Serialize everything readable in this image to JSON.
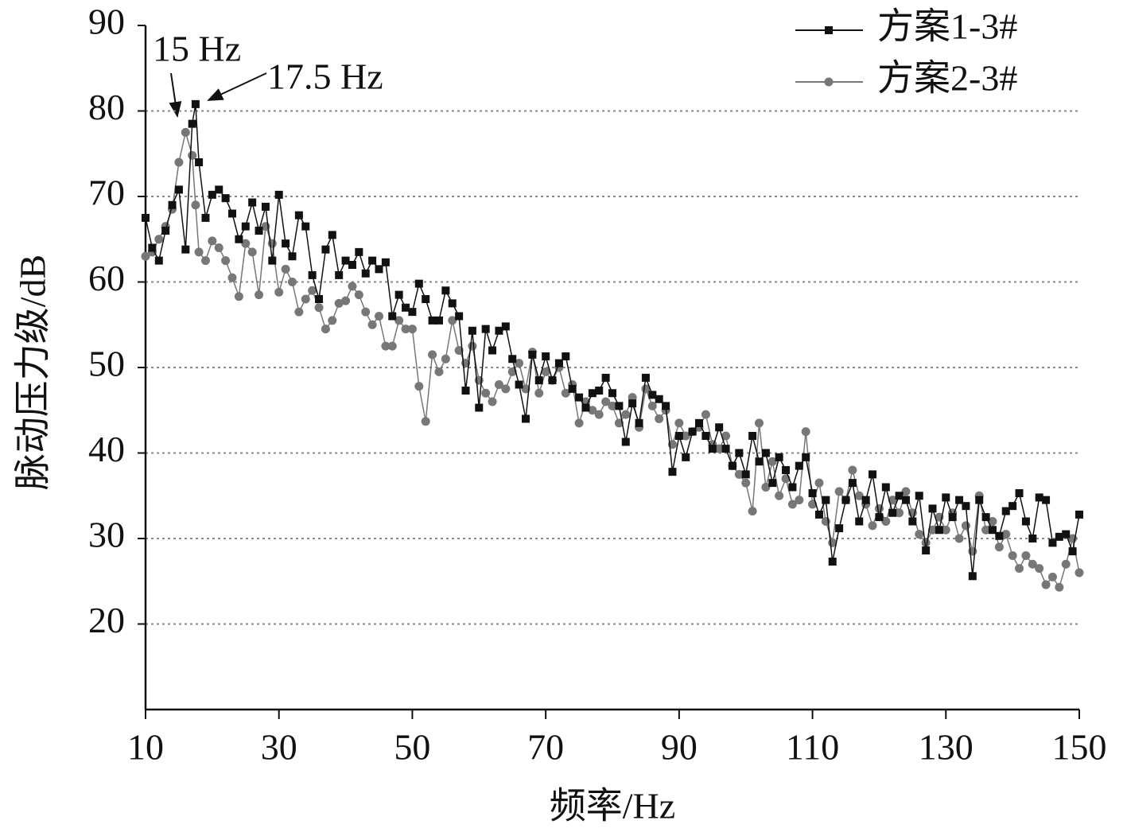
{
  "chart_data": {
    "type": "line",
    "xlabel": "频率/Hz",
    "ylabel": "脉动压力级/dB",
    "annotations": [
      "15 Hz",
      "17.5 Hz"
    ],
    "x": [
      10,
      11,
      12,
      13,
      14,
      15,
      16,
      17,
      17.5,
      18,
      19,
      20,
      21,
      22,
      23,
      24,
      25,
      26,
      27,
      28,
      29,
      30,
      31,
      32,
      33,
      34,
      35,
      36,
      37,
      38,
      39,
      40,
      41,
      42,
      43,
      44,
      45,
      46,
      47,
      48,
      49,
      50,
      51,
      52,
      53,
      54,
      55,
      56,
      57,
      58,
      59,
      60,
      61,
      62,
      63,
      64,
      65,
      66,
      67,
      68,
      69,
      70,
      71,
      72,
      73,
      74,
      75,
      76,
      77,
      78,
      79,
      80,
      81,
      82,
      83,
      84,
      85,
      86,
      87,
      88,
      89,
      90,
      91,
      92,
      93,
      94,
      95,
      96,
      97,
      98,
      99,
      100,
      101,
      102,
      103,
      104,
      105,
      106,
      107,
      108,
      109,
      110,
      111,
      112,
      113,
      114,
      115,
      116,
      117,
      118,
      119,
      120,
      121,
      122,
      123,
      124,
      125,
      126,
      127,
      128,
      129,
      130,
      131,
      132,
      133,
      134,
      135,
      136,
      137,
      138,
      139,
      140,
      141,
      142,
      143,
      144,
      145,
      146,
      147,
      148,
      149,
      150
    ],
    "series": [
      {
        "name": "方案1-3#",
        "color": "#111111",
        "marker": "square",
        "values": [
          67.5,
          64,
          62.5,
          66,
          69,
          70.8,
          63.8,
          78.5,
          80.8,
          74,
          67.5,
          70.2,
          70.8,
          69.8,
          68,
          65,
          66.5,
          69.3,
          66,
          68.8,
          62.5,
          70.2,
          64.5,
          63,
          67.8,
          66.5,
          60.8,
          58,
          63.8,
          65.5,
          60.8,
          62.5,
          62,
          63.5,
          61,
          62.5,
          61.5,
          62.3,
          56,
          58.5,
          57,
          56.5,
          59.8,
          58,
          55.5,
          55.5,
          59,
          57.5,
          56,
          47.3,
          54.3,
          45.3,
          54.5,
          52,
          54.3,
          54.8,
          51,
          48,
          44,
          51.5,
          48.5,
          51.3,
          48.5,
          50.5,
          51.3,
          47.5,
          46.5,
          45.3,
          47,
          47.3,
          48.8,
          47,
          45.5,
          41.3,
          45.8,
          43.5,
          48.8,
          46.8,
          46.3,
          45.5,
          37.8,
          42,
          39.5,
          42.5,
          43.5,
          42,
          40.5,
          43,
          40.5,
          38.5,
          40,
          37.5,
          42,
          39,
          40,
          36.5,
          39.5,
          38,
          36,
          38.5,
          39.5,
          35.3,
          32.8,
          34.5,
          27.3,
          31.2,
          34.5,
          36.5,
          32,
          34.5,
          37.5,
          32.5,
          36,
          33,
          35,
          34.5,
          32,
          35,
          28.6,
          33.5,
          31,
          34.8,
          32.5,
          34.5,
          33.8,
          25.6,
          34.5,
          32.5,
          31,
          30.3,
          33.2,
          33.8,
          35.3,
          32,
          30,
          34.8,
          34.5,
          29.5,
          30.2,
          30.5,
          28.5,
          32.8
        ]
      },
      {
        "name": "方案2-3#",
        "color": "#777777",
        "marker": "circle",
        "values": [
          63,
          63.5,
          65,
          66.5,
          68.5,
          74,
          77.5,
          74.8,
          69,
          63.5,
          62.5,
          64.8,
          64,
          62.5,
          60.5,
          58.3,
          64.5,
          63.5,
          58.5,
          66.5,
          64.5,
          58.8,
          61.5,
          60,
          56.5,
          58,
          59,
          57,
          54.5,
          55.5,
          57.5,
          57.8,
          59.5,
          58.5,
          56.5,
          55,
          56,
          52.5,
          52.5,
          55.5,
          54.5,
          54.5,
          47.8,
          43.7,
          51.5,
          49.5,
          51,
          55.5,
          52,
          50.5,
          52.5,
          48.5,
          47,
          46,
          48,
          47.5,
          49.5,
          50.5,
          47.5,
          51.8,
          47,
          49.5,
          48.5,
          50,
          47,
          48,
          43.5,
          46,
          45,
          44.5,
          46,
          45.5,
          43.5,
          44.5,
          46.5,
          43,
          47.5,
          45.5,
          44,
          45,
          41,
          43.5,
          42,
          42.5,
          43,
          44.5,
          41,
          40.5,
          42,
          38.5,
          37.5,
          36.5,
          33.2,
          43.5,
          36,
          39,
          35,
          37,
          34,
          34.5,
          42.5,
          34,
          36.5,
          32,
          29.5,
          35.5,
          34.5,
          38,
          35,
          34,
          31.5,
          33.5,
          32,
          34.5,
          33,
          35.5,
          33,
          30.5,
          29.5,
          31,
          32.5,
          31,
          33,
          30,
          31.5,
          28.5,
          35,
          31,
          32,
          29,
          30.5,
          28,
          26.5,
          28,
          27,
          26.5,
          24.6,
          25.5,
          24.3,
          27,
          30,
          26
        ]
      }
    ],
    "xlim": [
      10,
      150
    ],
    "xticks": [
      10,
      30,
      50,
      70,
      90,
      110,
      130,
      150
    ],
    "ylim": [
      10,
      90
    ],
    "yticks": [
      20,
      30,
      40,
      50,
      60,
      70,
      80,
      90
    ],
    "grid": true,
    "legend": "upper right"
  }
}
